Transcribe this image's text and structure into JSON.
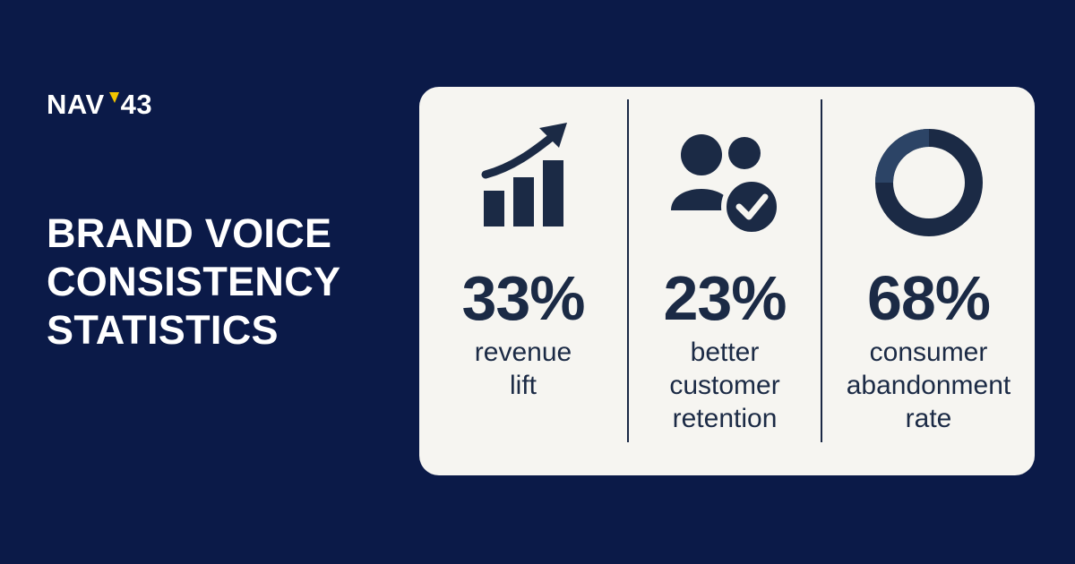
{
  "brand": {
    "logo_left": "NAV",
    "logo_right": "43",
    "accent_color": "#f2c500",
    "logo_icon": "triangle-accent-icon"
  },
  "headline": {
    "lines": [
      "BRAND VOICE",
      "CONSISTENCY",
      "STATISTICS"
    ]
  },
  "colors": {
    "background": "#0b1a48",
    "card": "#f6f5f1",
    "ink": "#1b2a45"
  },
  "stats": [
    {
      "icon": "rising-bar-chart-icon",
      "value": "33%",
      "label_lines": [
        "revenue",
        "lift"
      ]
    },
    {
      "icon": "users-check-icon",
      "value": "23%",
      "label_lines": [
        "better",
        "customer",
        "retention"
      ]
    },
    {
      "icon": "ring-icon",
      "value": "68%",
      "label_lines": [
        "consumer",
        "abandonment",
        "rate"
      ]
    }
  ]
}
